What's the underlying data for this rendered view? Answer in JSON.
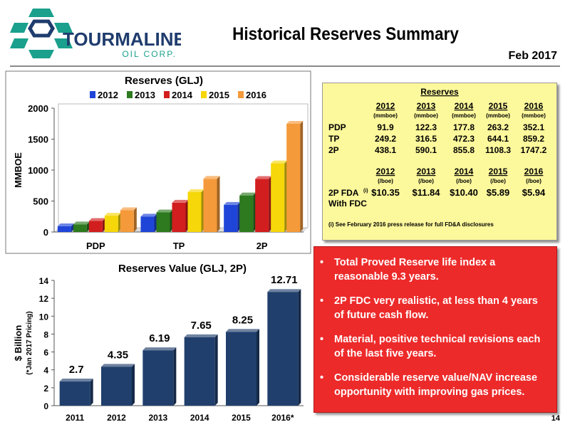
{
  "header": {
    "company": "TOURMALINE",
    "company_sub": "OIL CORP.",
    "title": "Historical Reserves Summary",
    "date": "Feb 2017",
    "page_number": "14"
  },
  "colors": {
    "2012": "#1f45d8",
    "2013": "#2d7a1f",
    "2014": "#d21e1e",
    "2015": "#f5d70a",
    "2016": "#f59a3a",
    "value_bar": "#203f6d",
    "logo_teal": "#1aa08c",
    "logo_navy": "#1f3c6e",
    "reserves_box": "#fcf89c",
    "bullet_box": "#ed2a2a"
  },
  "chart_data": [
    {
      "type": "bar",
      "title": "Reserves (GLJ)",
      "ylabel": "MMBOE",
      "categories": [
        "PDP",
        "TP",
        "2P"
      ],
      "series": [
        {
          "name": "2012",
          "values": [
            91.9,
            249.2,
            438.1
          ]
        },
        {
          "name": "2013",
          "values": [
            122.3,
            316.5,
            590.1
          ]
        },
        {
          "name": "2014",
          "values": [
            177.8,
            472.3,
            855.8
          ]
        },
        {
          "name": "2015",
          "values": [
            263.2,
            644.1,
            1108.3
          ]
        },
        {
          "name": "2016",
          "values": [
            352.1,
            859.2,
            1747.2
          ]
        }
      ],
      "ylim": [
        0,
        2000
      ],
      "yticks": [
        "0",
        "500",
        "1000",
        "1500",
        "2000"
      ],
      "legend": "top"
    },
    {
      "type": "bar",
      "title": "Reserves Value (GLJ, 2P)",
      "ylabel": "$ Billion",
      "ylabel_note": "(*Jan 2017 Pricing)",
      "categories": [
        "2011",
        "2012",
        "2013",
        "2014",
        "2015",
        "2016*"
      ],
      "values": [
        2.7,
        4.35,
        6.19,
        7.65,
        8.25,
        12.71
      ],
      "value_labels": [
        "2.7",
        "4.35",
        "6.19",
        "7.65",
        "8.25",
        "12.71"
      ],
      "ylim": [
        0,
        14
      ],
      "yticks": [
        "0",
        "2",
        "4",
        "6",
        "8",
        "10",
        "12",
        "14"
      ]
    }
  ],
  "reserves_table": {
    "title": "Reserves",
    "years": [
      "2012",
      "2013",
      "2014",
      "2015",
      "2016"
    ],
    "unit_volume": "(mmboe)",
    "rows": [
      {
        "label": "PDP",
        "values": [
          "91.9",
          "122.3",
          "177.8",
          "263.2",
          "352.1"
        ]
      },
      {
        "label": "TP",
        "values": [
          "249.2",
          "316.5",
          "472.3",
          "644.1",
          "859.2"
        ]
      },
      {
        "label": "2P",
        "values": [
          "438.1",
          "590.1",
          "855.8",
          "1108.3",
          "1747.2"
        ]
      }
    ],
    "unit_cost": "(/boe)",
    "fda_label": "2P FDA",
    "fda_sup": "(i)",
    "fda_label2": "With FDC",
    "fda_values": [
      "$10.35",
      "$11.84",
      "$10.40",
      "$5.89",
      "$5.94"
    ],
    "footnote": "(i)  See February 2016 press release for full FD&A disclosures"
  },
  "bullets": [
    "Total Proved Reserve life index a reasonable 9.3 years.",
    "2P FDC very realistic, at less than 4 years of future cash flow.",
    "Material, positive technical revisions each of the last five years.",
    "Considerable reserve value/NAV increase opportunity with improving gas prices."
  ]
}
